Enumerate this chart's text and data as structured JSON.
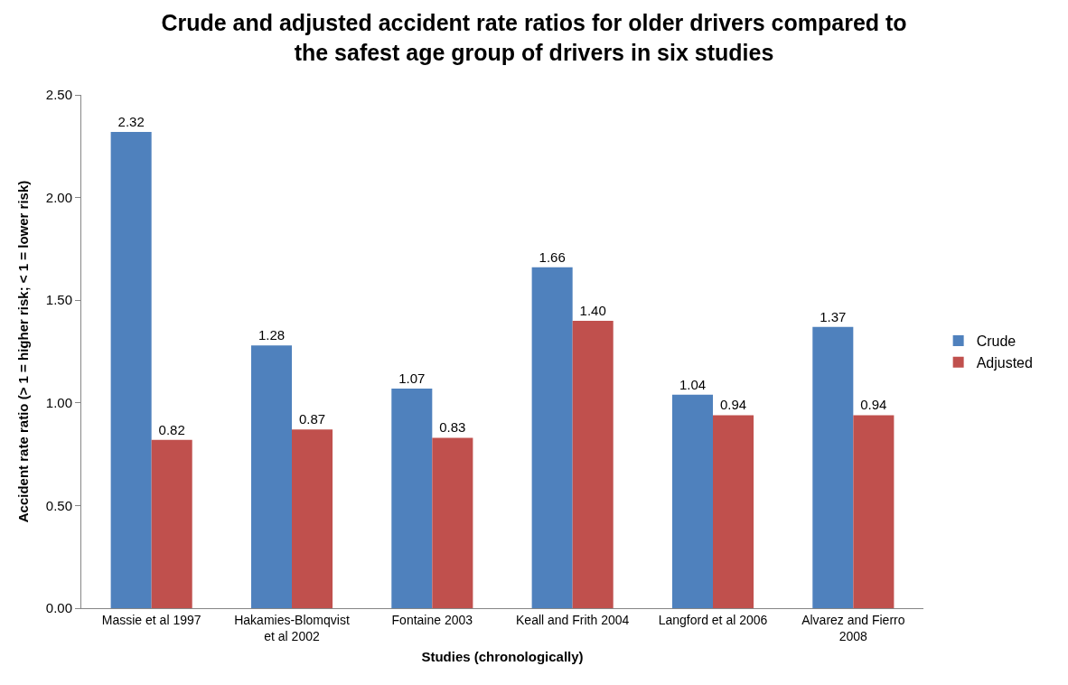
{
  "chart_data": {
    "type": "bar",
    "title": "Crude and adjusted accident rate ratios for older drivers compared to the safest age group of drivers in six studies",
    "xlabel": "Studies (chronologically)",
    "ylabel": "Accident rate ratio (> 1 = higher risk; < 1 = lower risk)",
    "categories": [
      "Massie et al 1997",
      "Hakamies-Blomqvist et al 2002",
      "Fontaine 2003",
      "Keall and Frith 2004",
      "Langford et al 2006",
      "Alvarez and Fierro 2008"
    ],
    "series": [
      {
        "name": "Crude",
        "color": "#4f81bd",
        "values": [
          2.32,
          1.28,
          1.07,
          1.66,
          1.04,
          1.37
        ],
        "value_labels": [
          "2.32",
          "1.28",
          "1.07",
          "1.66",
          "1.04",
          "1.37"
        ]
      },
      {
        "name": "Adjusted",
        "color": "#c0504d",
        "values": [
          0.82,
          0.87,
          0.83,
          1.4,
          0.94,
          0.94
        ],
        "value_labels": [
          "0.82",
          "0.87",
          "0.83",
          "1.40",
          "0.94",
          "0.94"
        ]
      }
    ],
    "ylim": [
      0,
      2.5
    ],
    "yticks": [
      {
        "value": 0,
        "label": "0.00"
      },
      {
        "value": 0.5,
        "label": "0.50"
      },
      {
        "value": 1,
        "label": "1.00"
      },
      {
        "value": 1.5,
        "label": "1.50"
      },
      {
        "value": 2,
        "label": "2.00"
      },
      {
        "value": 2.5,
        "label": "2.50"
      }
    ],
    "legend": "right"
  }
}
